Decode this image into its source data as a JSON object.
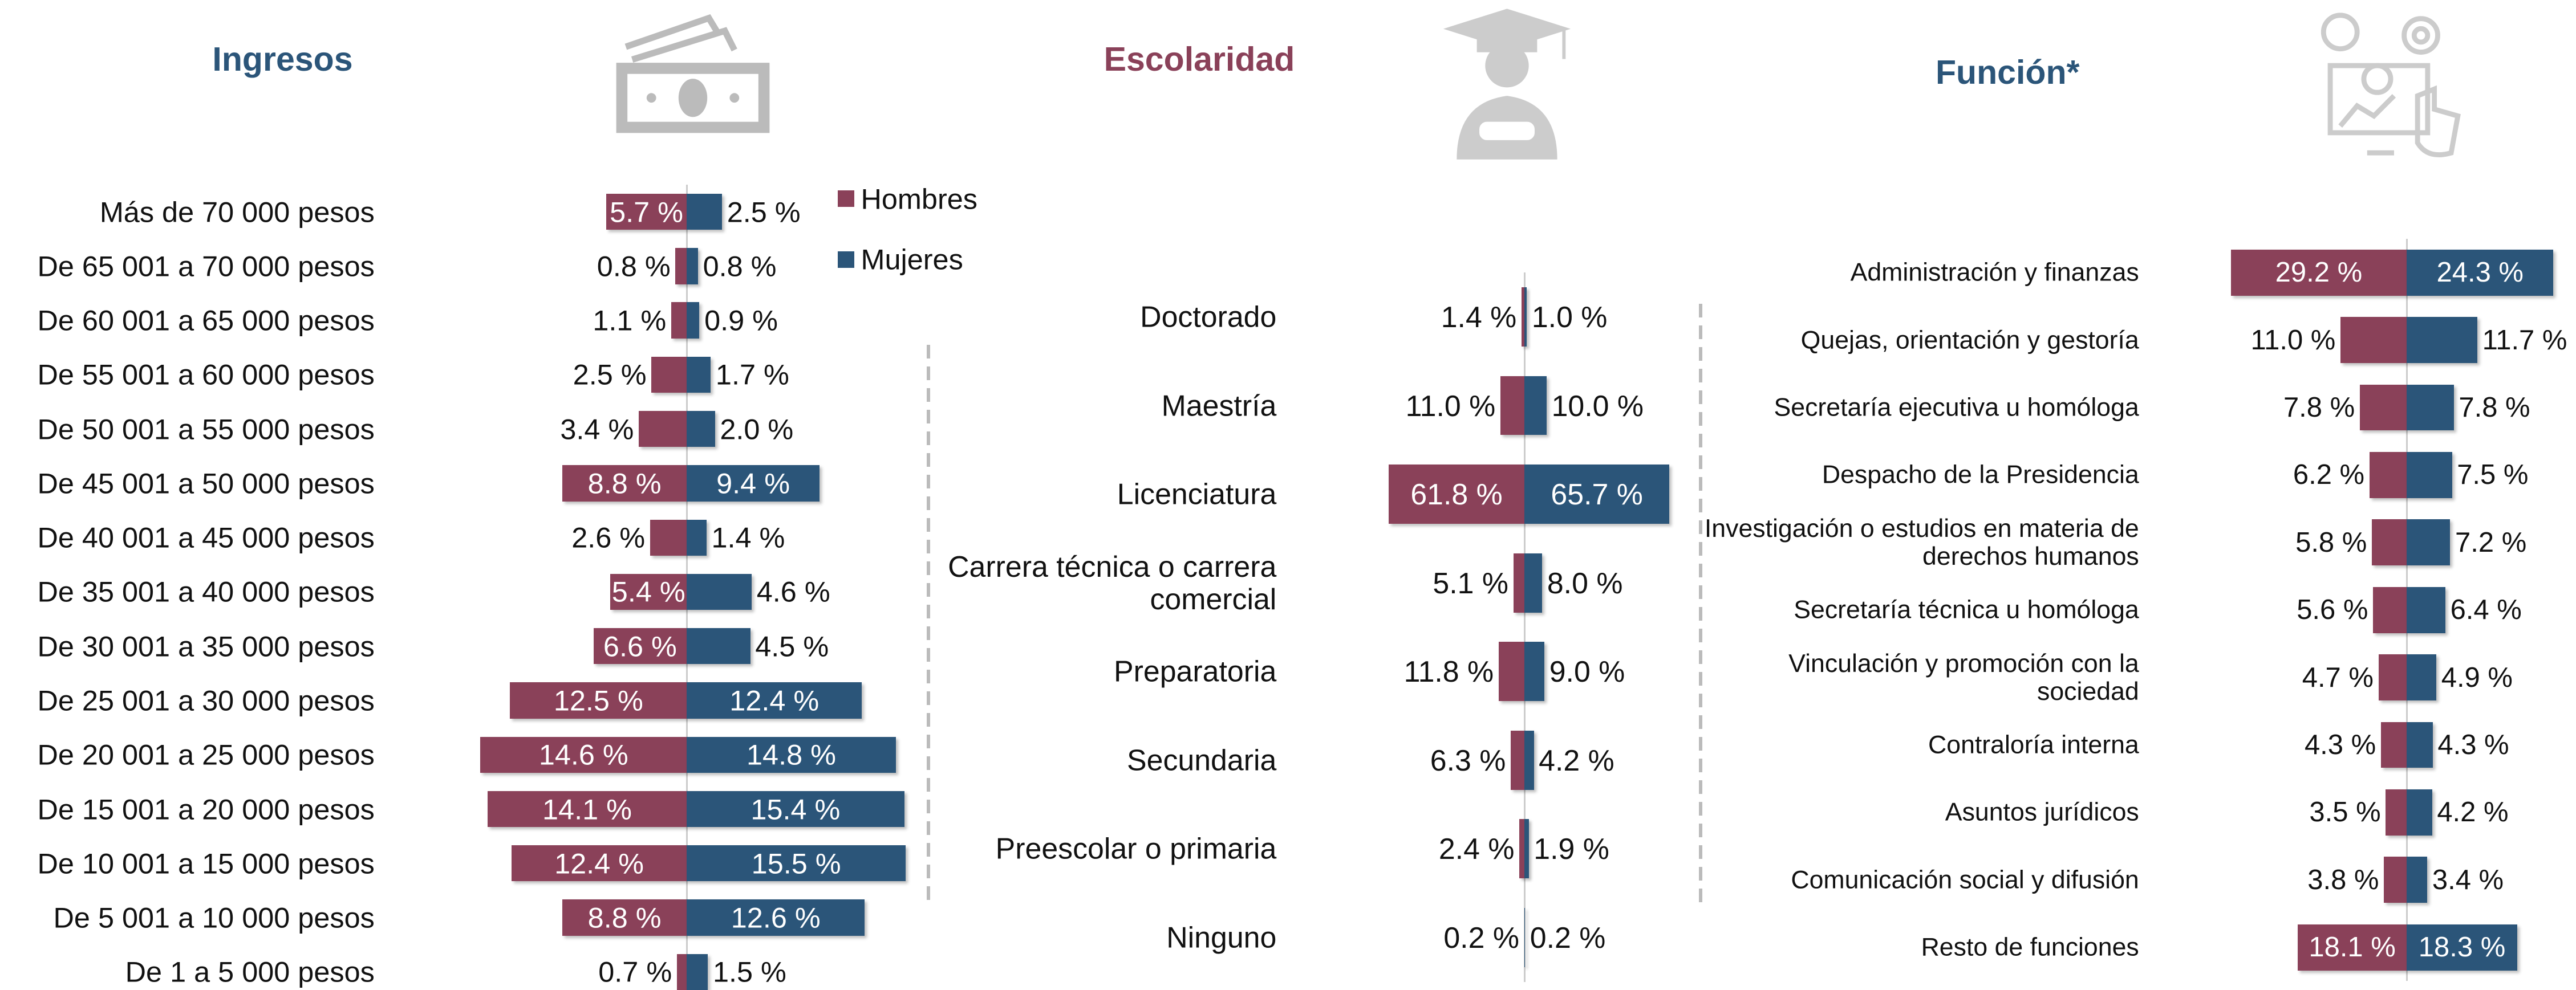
{
  "chart_data": [
    {
      "type": "butterfly",
      "title": "Ingresos",
      "legend": true,
      "categories": [
        "Más de 70 000 pesos",
        "De 65 001 a 70 000 pesos",
        "De 60 001 a 65 000 pesos",
        "De 55 001 a 60 000 pesos",
        "De 50 001 a 55 000 pesos",
        "De 45 001 a 50 000 pesos",
        "De 40 001 a 45 000 pesos",
        "De 35 001 a 40 000 pesos",
        "De 30 001 a 35 000 pesos",
        "De 25 001 a 30 000 pesos",
        "De 20 001 a 25 000 pesos",
        "De 15 001 a 20 000 pesos",
        "De 10 001 a 15 000 pesos",
        "De 5 001 a 10 000 pesos",
        "De 1 a 5 000 pesos"
      ],
      "series": [
        {
          "name": "Hombres",
          "color": "#8a4159",
          "values": [
            5.7,
            0.8,
            1.1,
            2.5,
            3.4,
            8.8,
            2.6,
            5.4,
            6.6,
            12.5,
            14.6,
            14.1,
            12.4,
            8.8,
            0.7
          ],
          "value_labels": [
            "5.7 %",
            "0.8 %",
            "1.1 %",
            "2.5 %",
            "3.4 %",
            "8.8 %",
            "2.6 %",
            "5.4 %",
            "6.6 %",
            "12.5 %",
            "14.6 %",
            "14.1 %",
            "12.4 %",
            "8.8 %",
            "0.7 %"
          ]
        },
        {
          "name": "Mujeres",
          "color": "#2b5579",
          "values": [
            2.5,
            0.8,
            0.9,
            1.7,
            2.0,
            9.4,
            1.4,
            4.6,
            4.5,
            12.4,
            14.8,
            15.4,
            15.5,
            12.6,
            1.5
          ],
          "value_labels": [
            "2.5 %",
            "0.8 %",
            "0.9 %",
            "1.7 %",
            "2.0 %",
            "9.4 %",
            "1.4 %",
            "4.6 %",
            "4.5 %",
            "12.4 %",
            "14.8 %",
            "15.4 %",
            "15.5 %",
            "12.6 %",
            "1.5 %"
          ]
        }
      ]
    },
    {
      "type": "butterfly",
      "title": "Escolaridad",
      "legend": false,
      "categories": [
        "Doctorado",
        "Maestría",
        "Licenciatura",
        "Carrera técnica o carrera comercial",
        "Preparatoria",
        "Secundaria",
        "Preescolar o primaria",
        "Ninguno"
      ],
      "series": [
        {
          "name": "Hombres",
          "color": "#8a4159",
          "values": [
            1.4,
            11.0,
            61.8,
            5.1,
            11.8,
            6.3,
            2.4,
            0.2
          ],
          "value_labels": [
            "1.4 %",
            "11.0 %",
            "61.8 %",
            "5.1 %",
            "11.8 %",
            "6.3 %",
            "2.4 %",
            "0.2 %"
          ]
        },
        {
          "name": "Mujeres",
          "color": "#2b5579",
          "values": [
            1.0,
            10.0,
            65.7,
            8.0,
            9.0,
            4.2,
            1.9,
            0.2
          ],
          "value_labels": [
            "1.0 %",
            "10.0 %",
            "65.7 %",
            "8.0 %",
            "9.0 %",
            "4.2 %",
            "1.9 %",
            "0.2 %"
          ]
        }
      ]
    },
    {
      "type": "butterfly",
      "title": "Función*",
      "legend": false,
      "categories": [
        "Administración y finanzas",
        "Quejas, orientación y gestoría",
        "Secretaría ejecutiva u homóloga",
        "Despacho de la Presidencia",
        "Investigación o estudios en materia de derechos humanos",
        "Secretaría técnica u homóloga",
        "Vinculación y promoción con la sociedad",
        "Contraloría interna",
        "Asuntos jurídicos",
        "Comunicación social y difusión",
        "Resto de funciones"
      ],
      "series": [
        {
          "name": "Hombres",
          "color": "#8a4159",
          "values": [
            29.2,
            11.0,
            7.8,
            6.2,
            5.8,
            5.6,
            4.7,
            4.3,
            3.5,
            3.8,
            18.1
          ],
          "value_labels": [
            "29.2 %",
            "11.0 %",
            "7.8 %",
            "6.2 %",
            "5.8 %",
            "5.6 %",
            "4.7 %",
            "4.3 %",
            "3.5 %",
            "3.8 %",
            "18.1 %"
          ]
        },
        {
          "name": "Mujeres",
          "color": "#2b5579",
          "values": [
            24.3,
            11.7,
            7.8,
            7.5,
            7.2,
            6.4,
            4.9,
            4.3,
            4.2,
            3.4,
            18.3
          ],
          "value_labels": [
            "24.3 %",
            "11.7 %",
            "7.8 %",
            "7.5 %",
            "7.2 %",
            "6.4 %",
            "4.9 %",
            "4.3 %",
            "4.2 %",
            "3.4 %",
            "18.3 %"
          ]
        }
      ]
    }
  ]
}
